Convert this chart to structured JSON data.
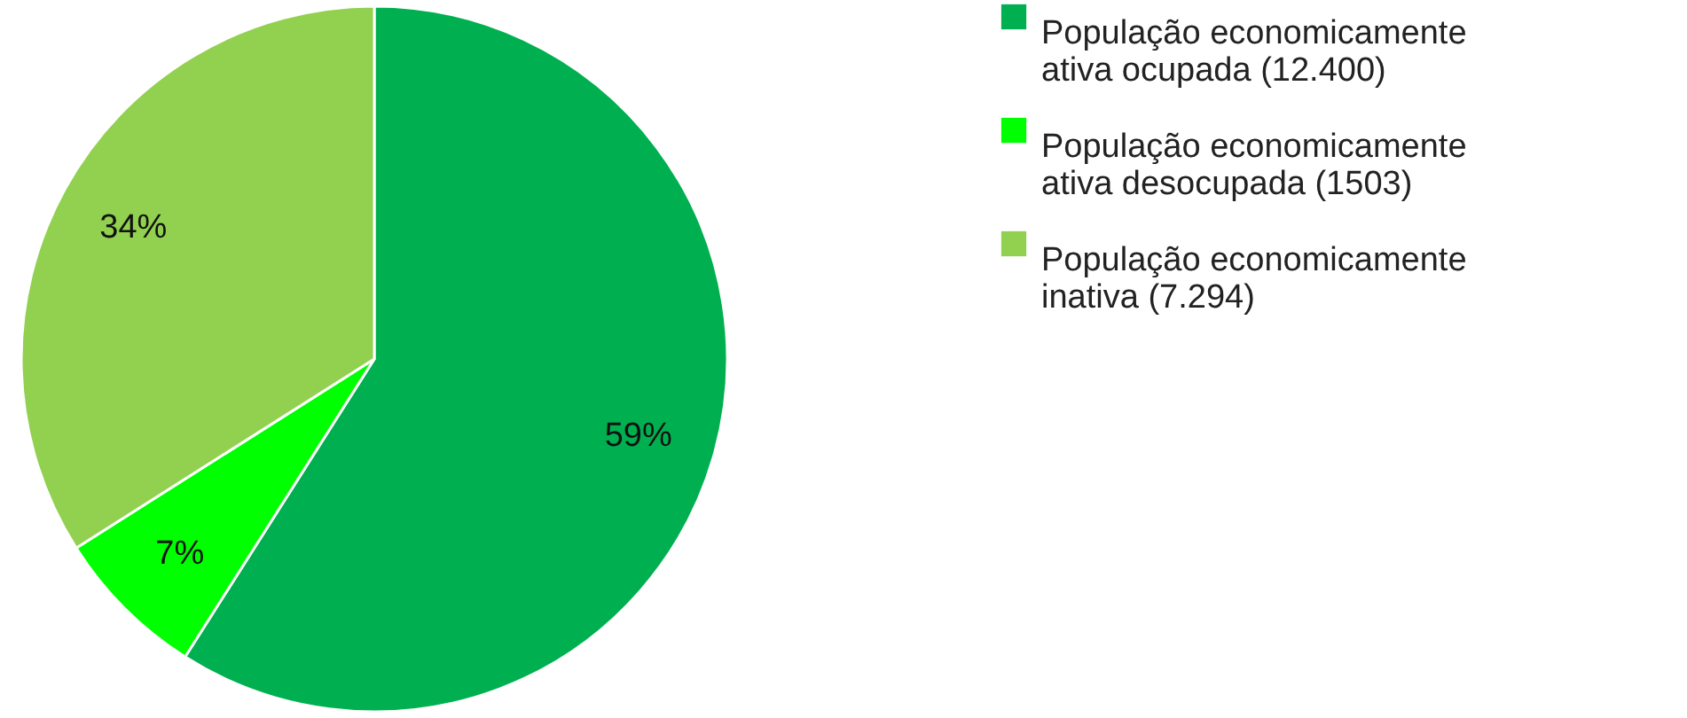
{
  "chart_data": {
    "type": "pie",
    "categories": [
      "População economicamente ativa ocupada (12.400)",
      "População economicamente ativa desocupada (1503)",
      "População economicamente inativa (7.294)"
    ],
    "values": [
      59,
      7,
      34
    ],
    "colors": [
      "#00b050",
      "#00ff00",
      "#92d050"
    ],
    "value_labels": [
      "59%",
      "7%",
      "34%"
    ],
    "legend": "right"
  }
}
